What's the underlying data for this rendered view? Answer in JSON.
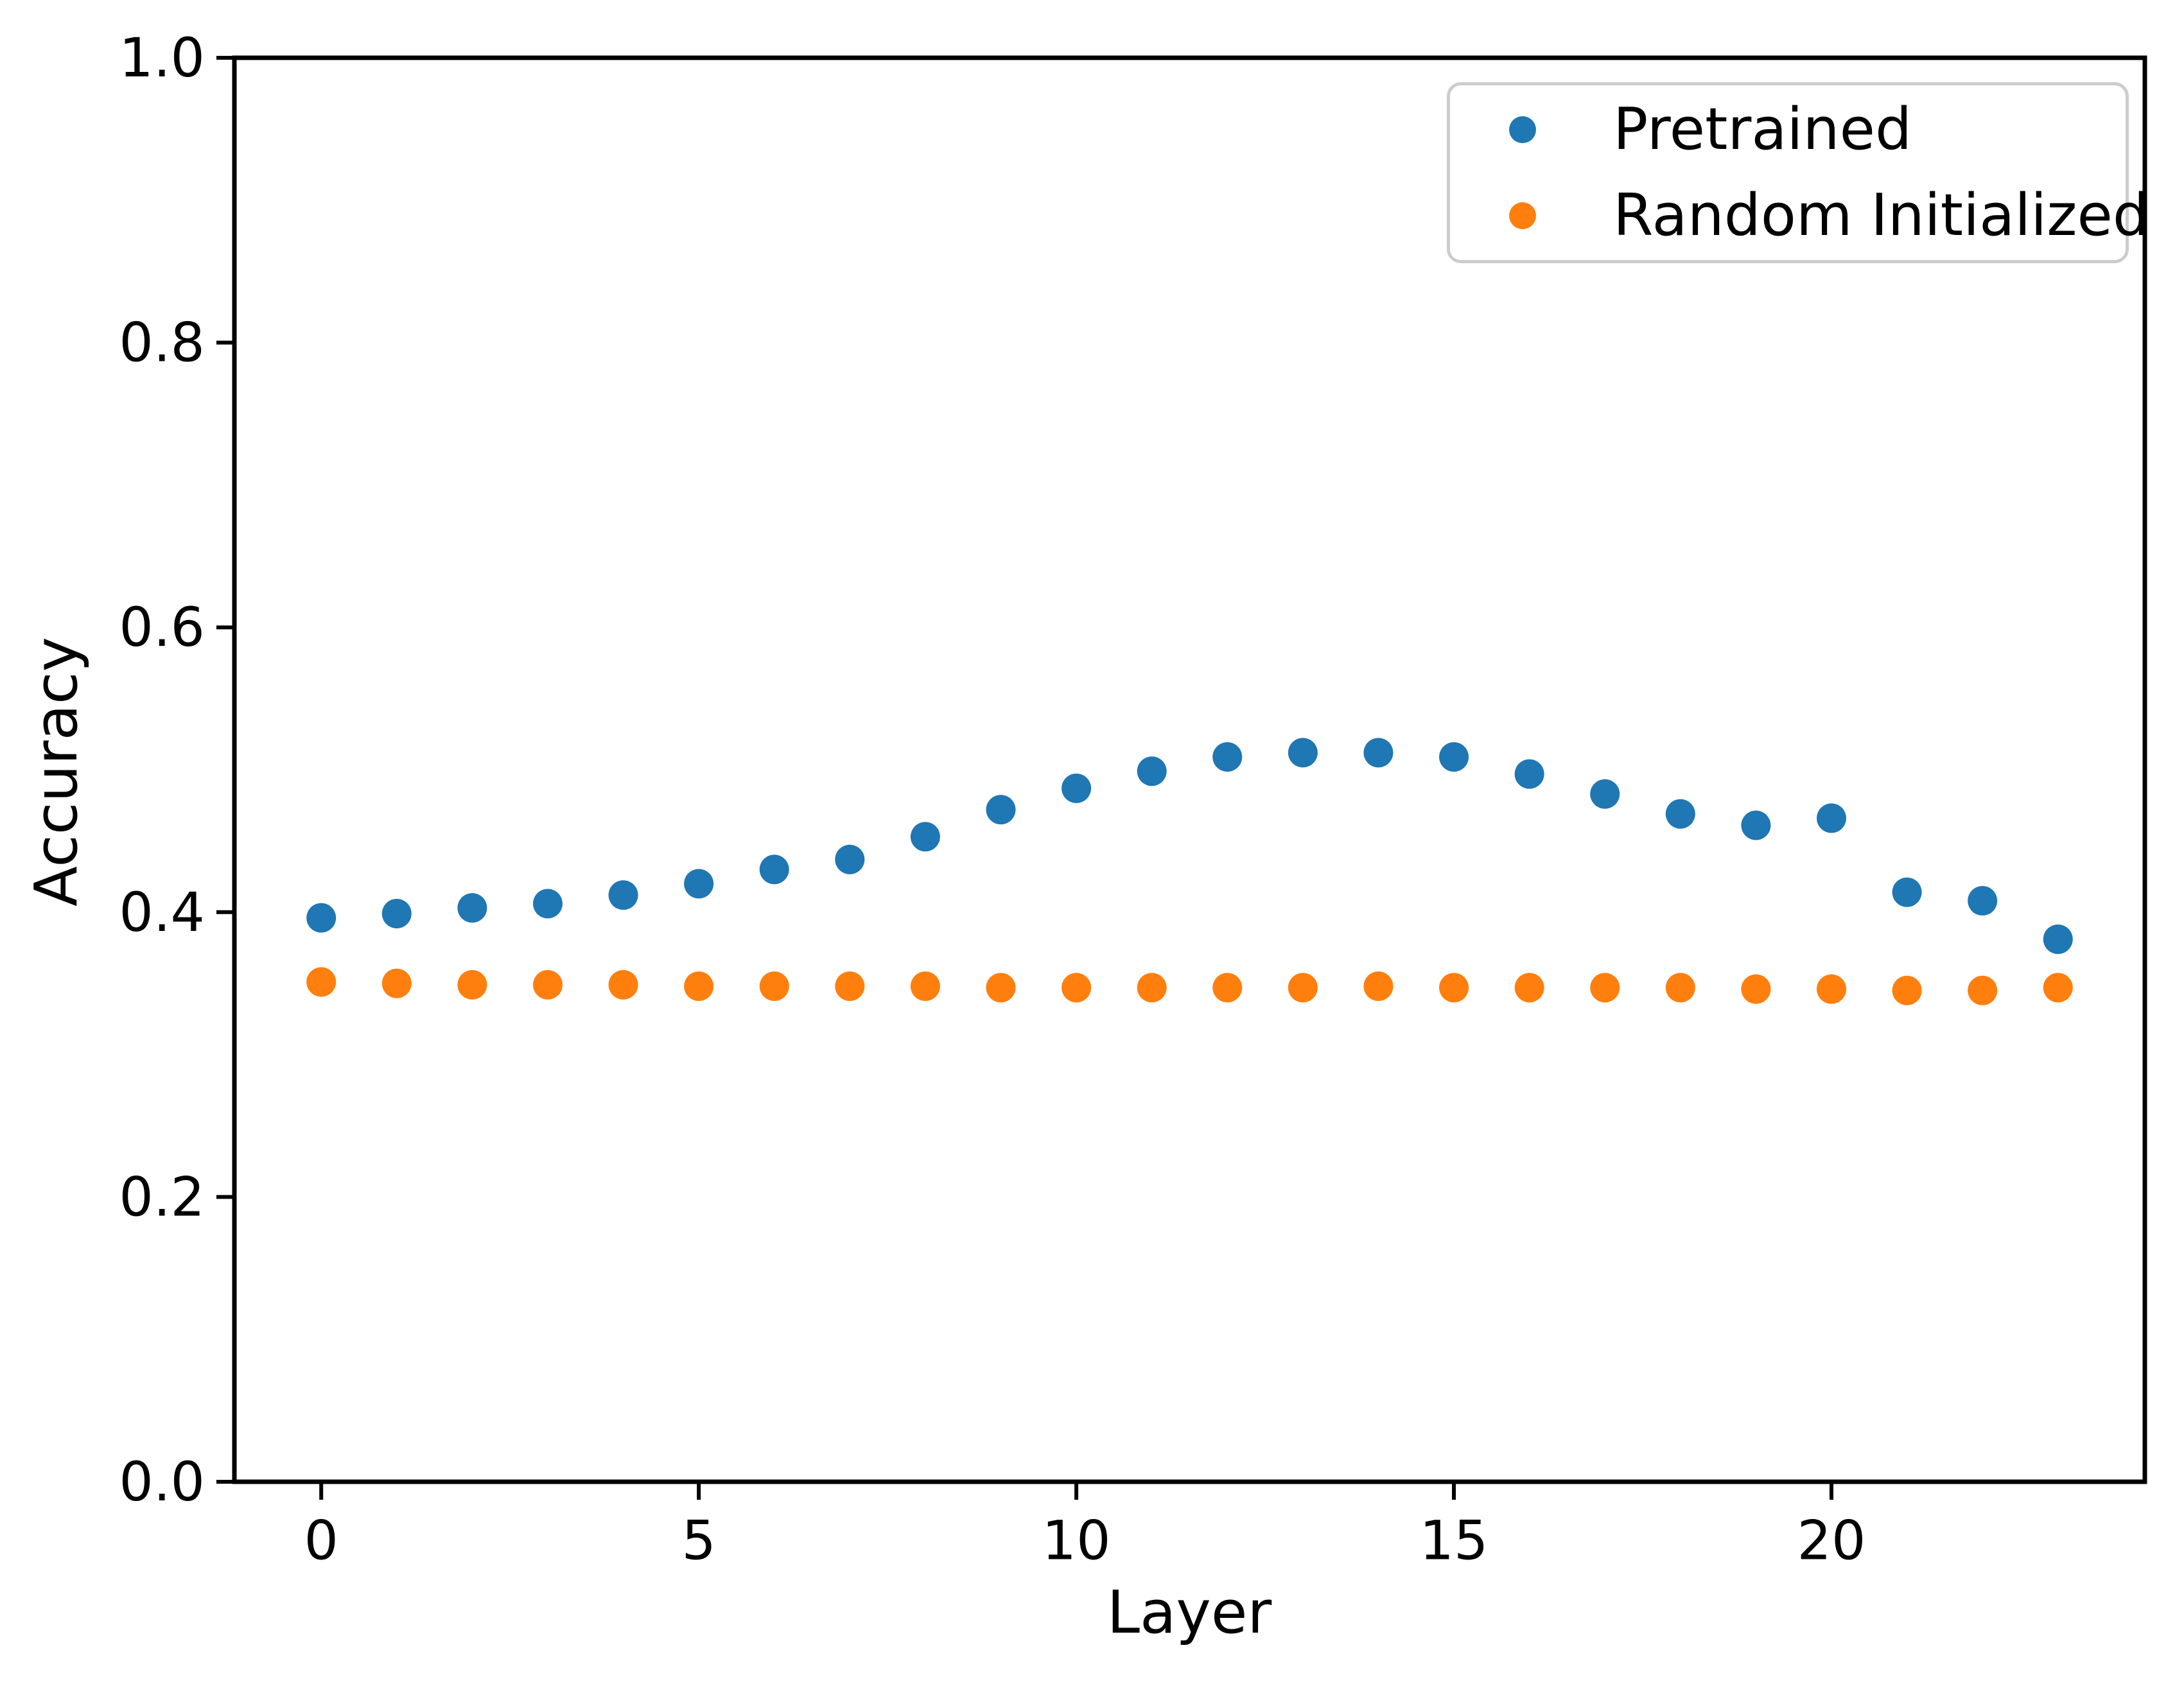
{
  "figure": {
    "background": "#ffffff"
  },
  "chart_data": {
    "type": "scatter",
    "title": "",
    "xlabel": "Layer",
    "ylabel": "Accuracy",
    "xlim": [
      -1.15,
      24.15
    ],
    "ylim": [
      0.0,
      1.0
    ],
    "grid": false,
    "legend_position": "upper right",
    "x_ticks": [
      0,
      5,
      10,
      15,
      20
    ],
    "x_tick_labels": [
      "0",
      "5",
      "10",
      "15",
      "20"
    ],
    "y_ticks": [
      0.0,
      0.2,
      0.4,
      0.6,
      0.8,
      1.0
    ],
    "y_tick_labels": [
      "0.0",
      "0.2",
      "0.4",
      "0.6",
      "0.8",
      "1.0"
    ],
    "x": [
      0,
      1,
      2,
      3,
      4,
      5,
      6,
      7,
      8,
      9,
      10,
      11,
      12,
      13,
      14,
      15,
      16,
      17,
      18,
      19,
      20,
      21,
      22,
      23
    ],
    "series": [
      {
        "name": "Pretrained",
        "color": "#1f77b4",
        "values": [
          0.396,
          0.399,
          0.403,
          0.406,
          0.412,
          0.42,
          0.43,
          0.437,
          0.453,
          0.472,
          0.487,
          0.499,
          0.509,
          0.512,
          0.512,
          0.509,
          0.497,
          0.483,
          0.469,
          0.461,
          0.466,
          0.414,
          0.408,
          0.381
        ]
      },
      {
        "name": "Random Initialized",
        "color": "#ff7f0e",
        "values": [
          0.351,
          0.35,
          0.349,
          0.349,
          0.349,
          0.348,
          0.348,
          0.348,
          0.348,
          0.347,
          0.347,
          0.347,
          0.347,
          0.347,
          0.348,
          0.347,
          0.347,
          0.347,
          0.347,
          0.346,
          0.346,
          0.345,
          0.345,
          0.347
        ]
      }
    ]
  }
}
